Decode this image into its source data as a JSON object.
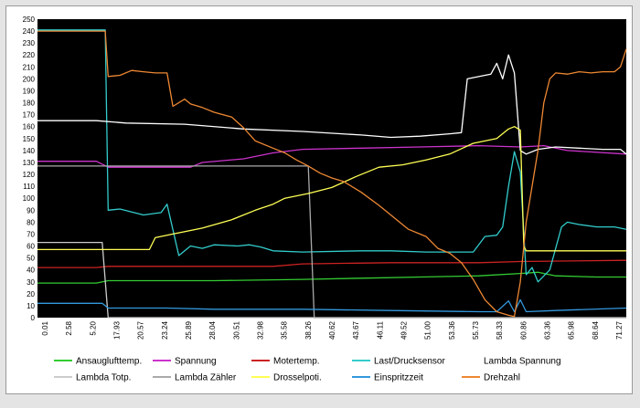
{
  "chart_data": {
    "type": "line",
    "title": "",
    "xlabel": "",
    "ylabel": "",
    "ylim": [
      0,
      250
    ],
    "y_ticks": [
      0,
      10,
      20,
      30,
      40,
      50,
      60,
      70,
      80,
      90,
      100,
      110,
      120,
      130,
      140,
      150,
      160,
      170,
      180,
      190,
      200,
      210,
      220,
      230,
      240,
      250
    ],
    "x_ticks": [
      "0.01",
      "2.58",
      "5.20",
      "17.93",
      "20.57",
      "23.24",
      "25.89",
      "28.04",
      "30.51",
      "32.98",
      "35.58",
      "38.26",
      "40.62",
      "43.67",
      "46.11",
      "49.52",
      "51.00",
      "53.36",
      "55.73",
      "58.33",
      "60.86",
      "63.36",
      "65.98",
      "68.64",
      "71.27"
    ],
    "xlim": [
      0,
      100
    ],
    "background": "#000000",
    "grid": false,
    "legend_position": "bottom",
    "series": [
      {
        "name": "Ansauglufttemp.",
        "color": "#33cc33",
        "points": [
          [
            0,
            29
          ],
          [
            10,
            29
          ],
          [
            12,
            31
          ],
          [
            30,
            31
          ],
          [
            45,
            32
          ],
          [
            55,
            33
          ],
          [
            65,
            34
          ],
          [
            75,
            35
          ],
          [
            82,
            37
          ],
          [
            85,
            38
          ],
          [
            88,
            35
          ],
          [
            95,
            34
          ],
          [
            100,
            34
          ]
        ]
      },
      {
        "name": "Spannung",
        "color": "#cc33cc",
        "points": [
          [
            0,
            131
          ],
          [
            10,
            131
          ],
          [
            12,
            126
          ],
          [
            26,
            126
          ],
          [
            28,
            130
          ],
          [
            35,
            133
          ],
          [
            40,
            138
          ],
          [
            45,
            141
          ],
          [
            55,
            142
          ],
          [
            65,
            143
          ],
          [
            75,
            144
          ],
          [
            82,
            143
          ],
          [
            86,
            144
          ],
          [
            90,
            140
          ],
          [
            100,
            137
          ]
        ]
      },
      {
        "name": "Motertemp.",
        "color": "#cc2222",
        "points": [
          [
            0,
            42
          ],
          [
            10,
            42
          ],
          [
            12,
            43
          ],
          [
            40,
            43
          ],
          [
            45,
            45
          ],
          [
            60,
            46
          ],
          [
            75,
            46
          ],
          [
            82,
            47
          ],
          [
            100,
            48
          ]
        ]
      },
      {
        "name": "Last/Drucksensor",
        "color": "#33cccc",
        "points": [
          [
            0,
            241
          ],
          [
            11.5,
            241
          ],
          [
            12,
            90
          ],
          [
            14,
            91
          ],
          [
            18,
            86
          ],
          [
            21,
            88
          ],
          [
            22,
            95
          ],
          [
            24,
            52
          ],
          [
            26,
            60
          ],
          [
            28,
            58
          ],
          [
            30,
            61
          ],
          [
            34,
            60
          ],
          [
            36,
            61
          ],
          [
            38,
            59
          ],
          [
            40,
            56
          ],
          [
            45,
            55
          ],
          [
            55,
            56
          ],
          [
            60,
            56
          ],
          [
            66,
            55
          ],
          [
            74,
            55
          ],
          [
            76,
            68
          ],
          [
            78,
            69
          ],
          [
            79,
            76
          ],
          [
            80,
            110
          ],
          [
            81,
            139
          ],
          [
            82,
            122
          ],
          [
            83,
            36
          ],
          [
            84,
            42
          ],
          [
            85,
            30
          ],
          [
            87,
            40
          ],
          [
            89,
            76
          ],
          [
            90,
            80
          ],
          [
            92,
            78
          ],
          [
            95,
            76
          ],
          [
            98,
            76
          ],
          [
            100,
            74
          ]
        ]
      },
      {
        "name": "Lambda Spannung",
        "color": "#ffffff",
        "points": [
          [
            0,
            165
          ],
          [
            5,
            165
          ],
          [
            10,
            165
          ],
          [
            15,
            163
          ],
          [
            25,
            162
          ],
          [
            35,
            158
          ],
          [
            45,
            156
          ],
          [
            55,
            153
          ],
          [
            60,
            151
          ],
          [
            65,
            152
          ],
          [
            70,
            154
          ],
          [
            72,
            155
          ],
          [
            73,
            200
          ],
          [
            76,
            203
          ],
          [
            77,
            204
          ],
          [
            78,
            213
          ],
          [
            79,
            200
          ],
          [
            80,
            220
          ],
          [
            81,
            205
          ],
          [
            82,
            140
          ],
          [
            83,
            137
          ],
          [
            85,
            141
          ],
          [
            88,
            143
          ],
          [
            92,
            142
          ],
          [
            96,
            141
          ],
          [
            99,
            141
          ],
          [
            100,
            137
          ]
        ]
      },
      {
        "name": "Lambda Totp.",
        "color": "#cccccc",
        "points": [
          [
            0,
            63
          ],
          [
            11,
            63
          ],
          [
            12,
            0
          ],
          [
            100,
            0
          ]
        ]
      },
      {
        "name": "Lambda Zähler",
        "color": "#aaaaaa",
        "points": [
          [
            0,
            127
          ],
          [
            46,
            127
          ],
          [
            47,
            0
          ],
          [
            100,
            0
          ]
        ]
      },
      {
        "name": "Drosselpoti.",
        "color": "#ffff55",
        "points": [
          [
            0,
            57
          ],
          [
            19,
            57
          ],
          [
            20,
            67
          ],
          [
            23,
            70
          ],
          [
            28,
            75
          ],
          [
            33,
            82
          ],
          [
            37,
            90
          ],
          [
            40,
            95
          ],
          [
            42,
            100
          ],
          [
            46,
            104
          ],
          [
            50,
            109
          ],
          [
            54,
            118
          ],
          [
            58,
            126
          ],
          [
            62,
            128
          ],
          [
            66,
            132
          ],
          [
            70,
            137
          ],
          [
            74,
            146
          ],
          [
            78,
            150
          ],
          [
            80,
            158
          ],
          [
            81,
            160
          ],
          [
            82,
            157
          ],
          [
            82.6,
            60
          ],
          [
            83,
            56
          ],
          [
            90,
            56
          ],
          [
            100,
            56
          ]
        ]
      },
      {
        "name": "Einspritzzeit",
        "color": "#3399dd",
        "points": [
          [
            0,
            12
          ],
          [
            11,
            12
          ],
          [
            12,
            8
          ],
          [
            22,
            8
          ],
          [
            30,
            7
          ],
          [
            45,
            7
          ],
          [
            60,
            6
          ],
          [
            75,
            5
          ],
          [
            78,
            5
          ],
          [
            80,
            14
          ],
          [
            81,
            5
          ],
          [
            82,
            15
          ],
          [
            83,
            5
          ],
          [
            88,
            6
          ],
          [
            100,
            8
          ]
        ]
      },
      {
        "name": "Drehzahl",
        "color": "#ee8833",
        "points": [
          [
            0,
            240
          ],
          [
            11.5,
            240
          ],
          [
            12,
            202
          ],
          [
            14,
            203
          ],
          [
            16,
            207
          ],
          [
            18,
            206
          ],
          [
            20,
            205
          ],
          [
            22,
            205
          ],
          [
            23,
            177
          ],
          [
            25,
            183
          ],
          [
            26,
            179
          ],
          [
            28,
            176
          ],
          [
            30,
            172
          ],
          [
            33,
            168
          ],
          [
            35,
            159
          ],
          [
            37,
            148
          ],
          [
            40,
            142
          ],
          [
            42,
            138
          ],
          [
            44,
            132
          ],
          [
            46,
            127
          ],
          [
            48,
            121
          ],
          [
            50,
            117
          ],
          [
            52,
            114
          ],
          [
            55,
            105
          ],
          [
            58,
            94
          ],
          [
            60,
            86
          ],
          [
            63,
            74
          ],
          [
            66,
            68
          ],
          [
            68,
            58
          ],
          [
            70,
            54
          ],
          [
            72,
            46
          ],
          [
            74,
            32
          ],
          [
            76,
            15
          ],
          [
            78,
            5
          ],
          [
            80,
            2
          ],
          [
            81,
            1
          ],
          [
            82,
            30
          ],
          [
            83,
            80
          ],
          [
            85,
            140
          ],
          [
            86,
            180
          ],
          [
            87,
            200
          ],
          [
            88,
            205
          ],
          [
            90,
            204
          ],
          [
            92,
            206
          ],
          [
            94,
            205
          ],
          [
            96,
            206
          ],
          [
            98,
            206
          ],
          [
            99,
            210
          ],
          [
            100,
            225
          ]
        ]
      }
    ]
  }
}
